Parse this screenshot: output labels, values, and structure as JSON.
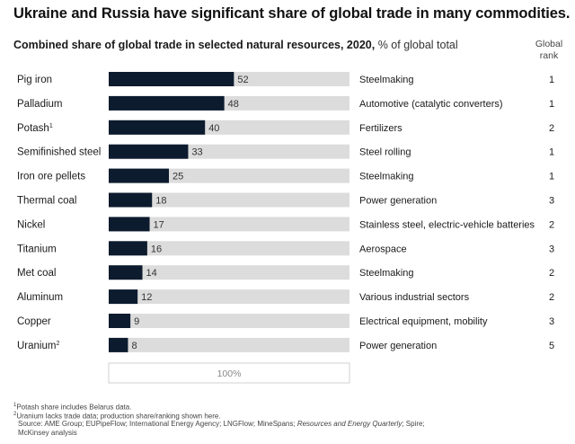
{
  "header": {
    "title": "Ukraine and Russia have significant share of global trade in many commodities.",
    "subtitle_bold": "Combined share of global trade in selected natural resources, 2020,",
    "subtitle_unit": "% of global total",
    "rank_header_line1": "Global",
    "rank_header_line2": "rank"
  },
  "chart_data": {
    "type": "bar",
    "orientation": "horizontal",
    "title": "Combined share of global trade in selected natural resources, 2020",
    "unit": "% of global total",
    "xlim": [
      0,
      100
    ],
    "full_bar_label": "100%",
    "categories": [
      "Pig iron",
      "Palladium",
      "Potash",
      "Semifinished steel",
      "Iron ore pellets",
      "Thermal coal",
      "Nickel",
      "Titanium",
      "Met coal",
      "Aluminum",
      "Copper",
      "Uranium"
    ],
    "category_superscripts": [
      "",
      "",
      "1",
      "",
      "",
      "",
      "",
      "",
      "",
      "",
      "",
      "2"
    ],
    "values": [
      52,
      48,
      40,
      33,
      25,
      18,
      17,
      16,
      14,
      12,
      9,
      8
    ],
    "uses": [
      "Steelmaking",
      "Automotive (catalytic converters)",
      "Fertilizers",
      "Steel rolling",
      "Steelmaking",
      "Power generation",
      "Stainless steel, electric-vehicle batteries",
      "Aerospace",
      "Steelmaking",
      "Various industrial sectors",
      "Electrical equipment, mobility",
      "Power generation"
    ],
    "global_rank": [
      1,
      1,
      2,
      1,
      1,
      3,
      2,
      3,
      2,
      2,
      3,
      5
    ],
    "colors": {
      "bar": "#0d1b2e",
      "track": "#dcdcdc",
      "text": "#1a1a1a"
    }
  },
  "footnotes": {
    "note1_mark": "1",
    "note1": "Potash share includes Belarus data.",
    "note2_mark": "2",
    "note2": "Uranium lacks trade data; production share/ranking shown here.",
    "source_pre": "Source: AME Group; EUPipeFlow; International Energy Agency; LNGFlow; MineSpans; ",
    "source_italic": "Resources and Energy Quarterly",
    "source_post": "; Spire;",
    "source_line2": "McKinsey analysis"
  }
}
